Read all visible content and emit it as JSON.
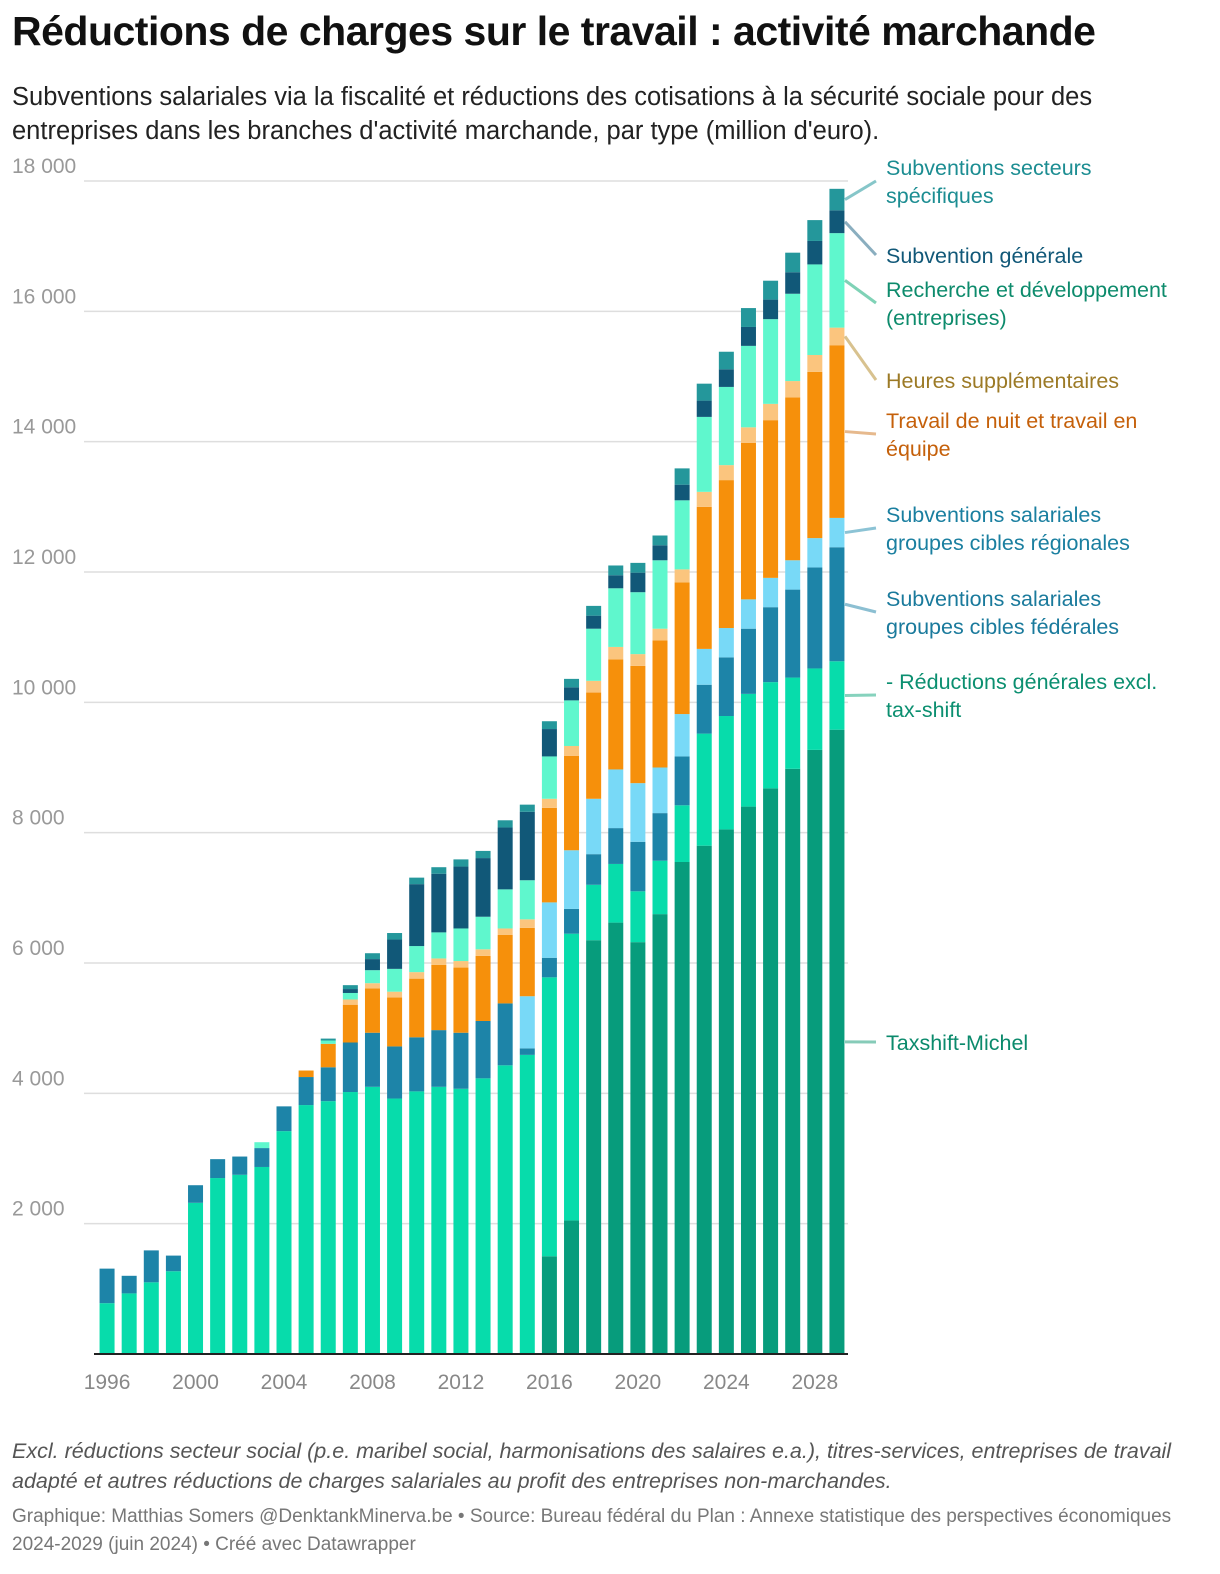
{
  "header": {
    "title": "Réductions de charges sur le travail : activité marchande",
    "subtitle": "Subventions salariales via la fiscalité et réductions des cotisations à la sécurité sociale pour des entreprises dans les branches d'activité marchande, par type (million d'euro)."
  },
  "footer": {
    "notes": "Excl. réductions secteur social (p.e. maribel social, harmonisations des salaires e.a.), titres-services, entreprises de travail adapté et autres réductions de charges salariales au profit des entreprises non-marchandes.",
    "byline": "Graphique: Matthias Somers @DenktankMinerva.be • Source: Bureau fédéral du Plan : Annexe statistique des perspectives économiques 2024-2029 (juin 2024) • Créé avec Datawrapper"
  },
  "chart_data": {
    "type": "bar",
    "stacked": true,
    "categories": [
      "1996",
      "1997",
      "1998",
      "1999",
      "2000",
      "2001",
      "2002",
      "2003",
      "2004",
      "2005",
      "2006",
      "2007",
      "2008",
      "2009",
      "2010",
      "2011",
      "2012",
      "2013",
      "2014",
      "2015",
      "2016",
      "2017",
      "2018",
      "2019",
      "2020",
      "2021",
      "2022",
      "2023",
      "2024",
      "2025",
      "2026",
      "2027",
      "2028",
      "2029"
    ],
    "x_tick_labels": [
      "1996",
      "2000",
      "2004",
      "2008",
      "2012",
      "2016",
      "2020",
      "2024",
      "2028"
    ],
    "y_ticks": [
      2000,
      4000,
      6000,
      8000,
      10000,
      12000,
      14000,
      16000,
      18000
    ],
    "y_tick_labels": [
      "2 000",
      "4 000",
      "6 000",
      "8 000",
      "10 000",
      "12 000",
      "14 000",
      "16 000",
      "18 000"
    ],
    "ylim": [
      0,
      18000
    ],
    "grid": true,
    "legend": "direct labels, right side",
    "series": [
      {
        "name": "Taxshift-Michel",
        "color": "#079c7c",
        "values": [
          0,
          0,
          0,
          0,
          0,
          0,
          0,
          0,
          0,
          0,
          0,
          0,
          0,
          0,
          0,
          0,
          0,
          0,
          0,
          0,
          1500,
          2050,
          6350,
          6620,
          6320,
          6750,
          7550,
          7800,
          8050,
          8400,
          8680,
          8980,
          9270,
          9580
        ]
      },
      {
        "name": "- Réductions générales excl. tax-shift",
        "color": "#07dcab",
        "values": [
          780,
          930,
          1100,
          1270,
          2320,
          2700,
          2750,
          2870,
          3420,
          3820,
          3880,
          4020,
          4100,
          3920,
          4030,
          4100,
          4070,
          4230,
          4430,
          4590,
          4280,
          4400,
          850,
          900,
          780,
          820,
          870,
          1720,
          1740,
          1730,
          1630,
          1400,
          1250,
          1050
        ]
      },
      {
        "name": "Subventions salariales groupes cibles fédérales",
        "color": "#1d84a8",
        "values": [
          530,
          270,
          490,
          240,
          270,
          290,
          280,
          290,
          380,
          430,
          520,
          760,
          830,
          800,
          830,
          870,
          860,
          880,
          950,
          100,
          300,
          380,
          470,
          550,
          760,
          730,
          750,
          750,
          900,
          1000,
          1150,
          1350,
          1550,
          1750
        ]
      },
      {
        "name": "Subventions salariales groupes cibles régionales",
        "color": "#78d9f7",
        "values": [
          0,
          0,
          0,
          0,
          0,
          0,
          0,
          0,
          0,
          0,
          0,
          0,
          0,
          0,
          0,
          0,
          0,
          0,
          0,
          800,
          850,
          900,
          850,
          900,
          900,
          700,
          650,
          550,
          450,
          450,
          450,
          450,
          450,
          450
        ]
      },
      {
        "name": "Travail de nuit et travail en équipe",
        "color": "#f6900b",
        "values": [
          0,
          0,
          0,
          0,
          0,
          0,
          0,
          0,
          0,
          100,
          360,
          580,
          680,
          750,
          900,
          1000,
          1000,
          1000,
          1050,
          1050,
          1450,
          1450,
          1630,
          1690,
          1800,
          1950,
          2020,
          2180,
          2270,
          2400,
          2420,
          2500,
          2550,
          2650
        ]
      },
      {
        "name": "Heures supplémentaires",
        "color": "#fbc57e",
        "values": [
          0,
          0,
          0,
          0,
          0,
          0,
          0,
          0,
          0,
          0,
          0,
          80,
          80,
          90,
          100,
          100,
          100,
          100,
          100,
          130,
          140,
          150,
          180,
          190,
          180,
          180,
          200,
          230,
          230,
          240,
          250,
          250,
          260,
          270
        ]
      },
      {
        "name": "Recherche et développement (entreprises)",
        "color": "#5ff7cd",
        "values": [
          0,
          0,
          0,
          0,
          0,
          0,
          0,
          90,
          0,
          0,
          50,
          100,
          200,
          350,
          400,
          400,
          500,
          500,
          600,
          600,
          650,
          700,
          800,
          900,
          950,
          1050,
          1060,
          1150,
          1200,
          1250,
          1300,
          1340,
          1390,
          1450
        ]
      },
      {
        "name": "Subvention générale",
        "color": "#115878",
        "values": [
          0,
          0,
          0,
          0,
          0,
          0,
          0,
          0,
          0,
          0,
          0,
          60,
          170,
          450,
          950,
          900,
          950,
          900,
          950,
          1050,
          420,
          200,
          200,
          200,
          300,
          230,
          240,
          250,
          270,
          290,
          300,
          330,
          360,
          350
        ]
      },
      {
        "name": "Subventions secteurs spécifiques",
        "color": "#24979b",
        "values": [
          0,
          0,
          0,
          0,
          0,
          0,
          0,
          0,
          0,
          0,
          30,
          60,
          90,
          100,
          100,
          100,
          110,
          110,
          110,
          110,
          120,
          130,
          150,
          150,
          150,
          150,
          250,
          260,
          270,
          290,
          290,
          300,
          320,
          330
        ]
      }
    ]
  }
}
